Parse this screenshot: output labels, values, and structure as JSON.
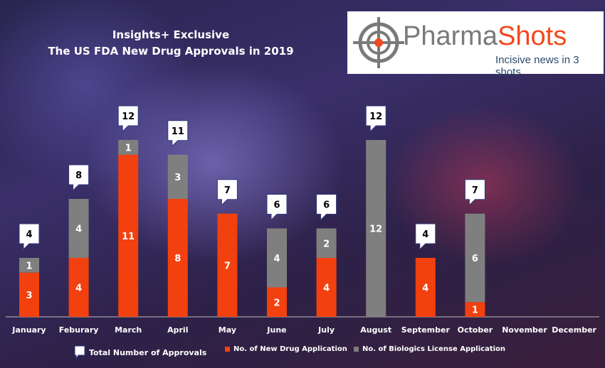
{
  "logo": {
    "name_part1": "Pharma",
    "name_part2": "Shots",
    "tagline": "Incisive news in 3 shots"
  },
  "chart_data": {
    "type": "bar",
    "stacked": true,
    "title": "Insights+ Exclusive",
    "subtitle": "The US FDA New Drug Approvals in 2019",
    "categories": [
      "January",
      "Feburary",
      "March",
      "April",
      "May",
      "June",
      "July",
      "August",
      "September",
      "October",
      "November",
      "December"
    ],
    "series": [
      {
        "name": "No. of New Drug Application",
        "color": "#f2400f",
        "values": [
          3,
          4,
          11,
          8,
          7,
          2,
          4,
          0,
          4,
          1,
          null,
          null
        ]
      },
      {
        "name": "No. of Biologics License Application",
        "color": "#7f7f7f",
        "values": [
          1,
          4,
          1,
          3,
          0,
          4,
          2,
          12,
          0,
          6,
          null,
          null
        ]
      }
    ],
    "totals": {
      "name": "Total Number of Approvals",
      "values": [
        4,
        8,
        12,
        11,
        7,
        6,
        6,
        12,
        4,
        7,
        null,
        null
      ]
    },
    "ylim": [
      0,
      12
    ],
    "grid": false,
    "legend": "bottom"
  }
}
